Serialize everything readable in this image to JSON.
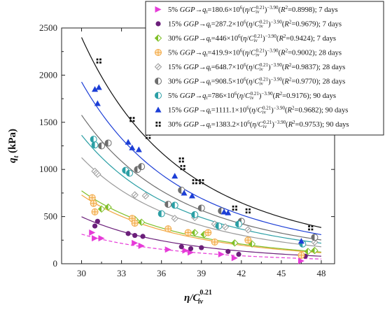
{
  "chart_data": {
    "type": "scatter",
    "x_axis": {
      "label": "η/C",
      "sub": "iv",
      "sup": "0.21",
      "min": 28.5,
      "max": 49,
      "ticks": [
        30,
        33,
        36,
        39,
        42,
        45,
        48
      ]
    },
    "y_axis": {
      "label": "q",
      "sub": "t",
      "unit": " (kPa)",
      "min": 0,
      "max": 2500,
      "ticks": [
        0,
        500,
        1000,
        1500,
        2000,
        2500
      ]
    },
    "series": [
      {
        "name": "5% GGP→q_t=180.6×10^6(η/C_iv^0.21)^−3.90(R^2=0.8998); 7 days",
        "legend_parts": [
          "5% ",
          "GGP",
          "→",
          "q",
          "t",
          "=180.6×10",
          "6",
          "(",
          "η",
          "/",
          "C",
          "iv",
          "0.21",
          ")",
          "−3.90",
          "(",
          "R",
          "2",
          "=0.8998); 7 days"
        ],
        "color": "#e63bd8",
        "marker": "tri-right",
        "line": "dashed",
        "coef": 180.6,
        "x": [
          30.8,
          31.0,
          31.5,
          34.0,
          34.5,
          36.5,
          37.8,
          38.2,
          40.5,
          41.5,
          46.5
        ],
        "y": [
          330,
          270,
          270,
          220,
          190,
          150,
          140,
          120,
          100,
          60,
          30
        ]
      },
      {
        "name": "15% GGP→q_t=287.2×10^6(η/C_iv^0.21)^−3.90(R^2=0.9679); 7 days",
        "legend_parts": [
          "15% ",
          "GGP",
          "→",
          "q",
          "t",
          "=287.2×10",
          "6",
          "(",
          "η",
          "/",
          "C",
          "iv",
          "0.21",
          ")",
          "−3.90",
          "(",
          "R",
          "2",
          "=0.9679); 7 days"
        ],
        "color": "#6b1f7a",
        "marker": "circle",
        "line": "solid",
        "coef": 287.2,
        "x": [
          31.2,
          31.0,
          33.5,
          34.0,
          34.6,
          37.5,
          38.2,
          39.0,
          41.0,
          41.8,
          46.8
        ],
        "y": [
          450,
          400,
          320,
          300,
          290,
          180,
          160,
          170,
          130,
          100,
          80
        ]
      },
      {
        "name": "30% GGP→q_t=446×10^6(η/C_iv^0.21)^−3.90(R^2=0.9424); 7 days",
        "legend_parts": [
          "30% ",
          "GGP",
          "→",
          "q",
          "t",
          "=446×10",
          "6",
          "(",
          "η",
          "/",
          "C",
          "iv",
          "0.21",
          ")",
          "−3.90",
          "(",
          "R",
          "2",
          "=0.9424); 7 days"
        ],
        "color": "#7fbf28",
        "marker": "diamond-half",
        "line": "solid",
        "coef": 446,
        "x": [
          31.5,
          32.0,
          34.0,
          34.5,
          38.5,
          39.2,
          41.5,
          42.8,
          47.0,
          47.5
        ],
        "y": [
          580,
          600,
          470,
          440,
          330,
          310,
          220,
          210,
          130,
          140
        ]
      },
      {
        "name": "5% GGP→q_t=419.9×10^6(η/C_iv^0.21)^−3.90(R^2=0.9002); 28 days",
        "legend_parts": [
          "5% ",
          "GGP",
          "→",
          "q",
          "t",
          "=419.9×10",
          "6",
          "(",
          "η",
          "/",
          "C",
          "iv",
          "0.21",
          ")",
          "−3.90",
          "(",
          "R",
          "2",
          "=0.9002); 28 days"
        ],
        "color": "#f2a640",
        "marker": "circle-plus",
        "line": "solid",
        "coef": 419.9,
        "x": [
          30.8,
          30.9,
          31.0,
          33.8,
          34.0,
          36.5,
          38.0,
          39.5,
          40.0,
          42.5,
          46.5
        ],
        "y": [
          700,
          640,
          550,
          480,
          430,
          370,
          330,
          330,
          230,
          250,
          90
        ]
      },
      {
        "name": "15% GGP→q_t=648.7×10^6(η/C_iv^0.21)^−3.90(R^2=0.9837); 28 days",
        "legend_parts": [
          "15% ",
          "GGP",
          "→",
          "q",
          "t",
          "=648.7×10",
          "6",
          "(",
          "η",
          "/",
          "C",
          "iv",
          "0.21",
          ")",
          "−3.90",
          "(",
          "R",
          "2",
          "=0.9837); 28 days"
        ],
        "color": "#9a9a9a",
        "marker": "diamond-open",
        "line": "solid",
        "coef": 648.7,
        "x": [
          31.0,
          31.2,
          34.0,
          34.8,
          37.0,
          38.5,
          40.0,
          40.8,
          42.5,
          47.5
        ],
        "y": [
          980,
          950,
          730,
          720,
          480,
          490,
          420,
          390,
          360,
          230
        ]
      },
      {
        "name": "30% GGP→q_t=908.5×10^6(η/C_iv^0.21)^−3.90(R^2=0.9770); 28 days",
        "legend_parts": [
          "30% ",
          "GGP",
          "→",
          "q",
          "t",
          "=908.5×10",
          "6",
          "(",
          "η",
          "/",
          "C",
          "iv",
          "0.21",
          ")",
          "−3.90",
          "(",
          "R",
          "2",
          "=0.9770); 28 days"
        ],
        "color": "#6e6e6e",
        "marker": "circle-half",
        "line": "solid",
        "coef": 908.5,
        "x": [
          31.5,
          32.0,
          34.2,
          34.5,
          36.5,
          37.5,
          39.0,
          40.5,
          42.0,
          47.5
        ],
        "y": [
          1250,
          1280,
          1000,
          1030,
          630,
          780,
          590,
          560,
          450,
          280
        ]
      },
      {
        "name": "5% GGP→q_t=786×10^6(η/C_iv^0.21)^−3.90(R^2=0.9176); 90 days",
        "legend_parts": [
          "5% ",
          "GGP",
          "→",
          "q",
          "t",
          "=786×10",
          "6",
          "(",
          "η",
          "/",
          "C",
          "iv",
          "0.21",
          ")",
          "−3.90",
          "(",
          "R",
          "2",
          "=0.9176); 90 days"
        ],
        "color": "#2b9fa5",
        "marker": "circle-half",
        "line": "solid",
        "coef": 786,
        "x": [
          30.9,
          31.0,
          33.3,
          33.6,
          36.0,
          37.0,
          38.5,
          40.3,
          41.8,
          46.6
        ],
        "y": [
          1320,
          1260,
          990,
          960,
          530,
          620,
          520,
          400,
          420,
          210
        ]
      },
      {
        "name": "15% GGP→q_t=1111.1×10^6(η/C_iv^0.21)^−3.90(R^2=0.9682); 90 days",
        "legend_parts": [
          "15% ",
          "GGP",
          "→",
          "q",
          "t",
          "=1111.1×10",
          "6",
          "(",
          "η",
          "/",
          "C",
          "iv",
          "0.21",
          ")",
          "−3.90",
          "(",
          "R",
          "2",
          "=0.9682); 90 days"
        ],
        "color": "#1c3ed6",
        "marker": "triangle",
        "line": "solid",
        "coef": 1111.1,
        "x": [
          31.0,
          31.3,
          31.2,
          33.5,
          33.8,
          34.3,
          37.0,
          37.7,
          38.3,
          40.7,
          41.0,
          46.5
        ],
        "y": [
          1850,
          1870,
          1700,
          1290,
          1230,
          1210,
          930,
          750,
          720,
          550,
          540,
          240
        ]
      },
      {
        "name": "30% GGP→q_t=1383.2×10^6(η/C_iv^0.21)^−3.90(R^2=0.9753); 90 days",
        "legend_parts": [
          "30% ",
          "GGP",
          "→",
          "q",
          "t",
          "=1383.2×10",
          "6",
          "(",
          "η",
          "/",
          "C",
          "iv",
          "0.21",
          ")",
          "−3.90",
          "(",
          "R",
          "2",
          "=0.9753); 90 days"
        ],
        "color": "#111111",
        "marker": "square-cluster",
        "line": "solid",
        "coef": 1383.2,
        "x": [
          31.3,
          33.8,
          35.0,
          37.5,
          37.6,
          38.5,
          39.0,
          41.5,
          42.5,
          47.2
        ],
        "y": [
          2150,
          1530,
          1350,
          1100,
          1020,
          870,
          870,
          590,
          560,
          380
        ]
      }
    ],
    "fit_exponent": -3.9,
    "legend_position": "top-right",
    "grid": false
  }
}
